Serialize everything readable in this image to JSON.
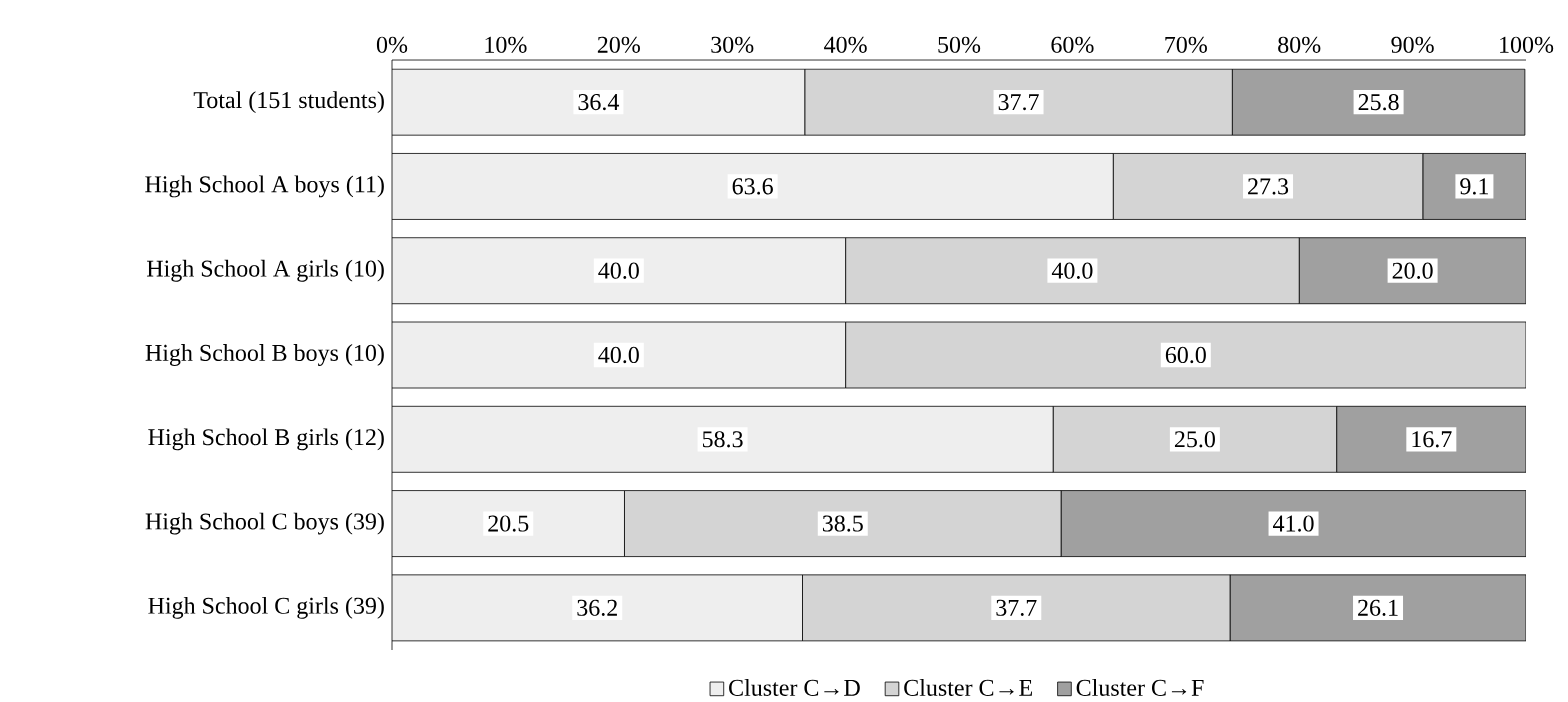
{
  "chart_data": {
    "type": "bar",
    "orientation": "horizontal",
    "stacked": true,
    "categories": [
      "Total (151 students)",
      "High School A boys (11)",
      "High School A girls (10)",
      "High School B boys (10)",
      "High School B girls (12)",
      "High School C boys (39)",
      "High School C girls (39)"
    ],
    "series": [
      {
        "name": "Cluster C→D",
        "color": "#eeeeee",
        "values": [
          36.4,
          63.6,
          40.0,
          40.0,
          58.3,
          20.5,
          36.2
        ],
        "value_labels": [
          "36.4",
          "63.6",
          "40.0",
          "40.0",
          "58.3",
          "20.5",
          "36.2"
        ]
      },
      {
        "name": "Cluster C→E",
        "color": "#d4d4d4",
        "values": [
          37.7,
          27.3,
          40.0,
          60.0,
          25.0,
          38.5,
          37.7
        ],
        "value_labels": [
          "37.7",
          "27.3",
          "40.0",
          "60.0",
          "25.0",
          "38.5",
          "37.7"
        ]
      },
      {
        "name": "Cluster C→F",
        "color": "#a0a0a0",
        "values": [
          25.8,
          9.1,
          20.0,
          0,
          16.7,
          41.0,
          26.1
        ],
        "value_labels": [
          "25.8",
          "9.1",
          "20.0",
          null,
          "16.7",
          "41.0",
          "26.1"
        ]
      }
    ],
    "xlim": [
      0,
      100
    ],
    "xticks": [
      {
        "value": 0,
        "label": "0%"
      },
      {
        "value": 10,
        "label": "10%"
      },
      {
        "value": 20,
        "label": "20%"
      },
      {
        "value": 30,
        "label": "30%"
      },
      {
        "value": 40,
        "label": "40%"
      },
      {
        "value": 50,
        "label": "50%"
      },
      {
        "value": 60,
        "label": "60%"
      },
      {
        "value": 70,
        "label": "70%"
      },
      {
        "value": 80,
        "label": "80%"
      },
      {
        "value": 90,
        "label": "90%"
      },
      {
        "value": 100,
        "label": "100%"
      }
    ],
    "grid": false,
    "legend": "bottom"
  }
}
